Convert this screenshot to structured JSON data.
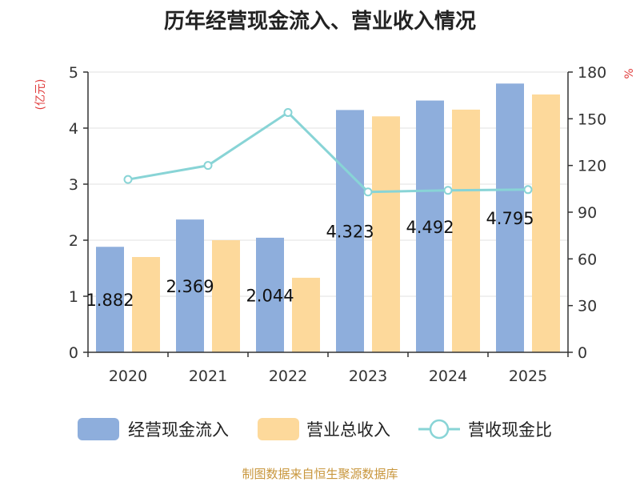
{
  "title": "历年经营现金流入、营业收入情况",
  "source": "制图数据来自恒生聚源数据库",
  "chart_data": {
    "type": "bar",
    "categories": [
      "2020",
      "2021",
      "2022",
      "2023",
      "2024",
      "2025"
    ],
    "series": [
      {
        "name": "经营现金流入",
        "values": [
          1.882,
          2.369,
          2.044,
          4.323,
          4.492,
          4.795
        ],
        "color": "#8eaedc",
        "axis": "left",
        "type": "bar"
      },
      {
        "name": "营业总收入",
        "values": [
          1.7,
          2.0,
          1.33,
          4.21,
          4.33,
          4.6
        ],
        "color": "#fdd99b",
        "axis": "left",
        "type": "bar"
      },
      {
        "name": "营收现金比",
        "values": [
          111,
          120,
          154,
          103,
          104,
          104.5
        ],
        "color": "#88d4d6",
        "axis": "right",
        "type": "line"
      }
    ],
    "data_labels": [
      "1.882",
      "2.369",
      "2.044",
      "4.323",
      "4.492",
      "4.795"
    ],
    "y_left": {
      "label": "(亿元)",
      "min": 0,
      "max": 5,
      "ticks": [
        "0",
        "1",
        "2",
        "3",
        "4",
        "5"
      ]
    },
    "y_right": {
      "label": "%",
      "min": 0,
      "max": 180,
      "ticks": [
        "0",
        "30",
        "60",
        "90",
        "120",
        "150",
        "180"
      ]
    },
    "grid": true,
    "legend_position": "bottom"
  }
}
